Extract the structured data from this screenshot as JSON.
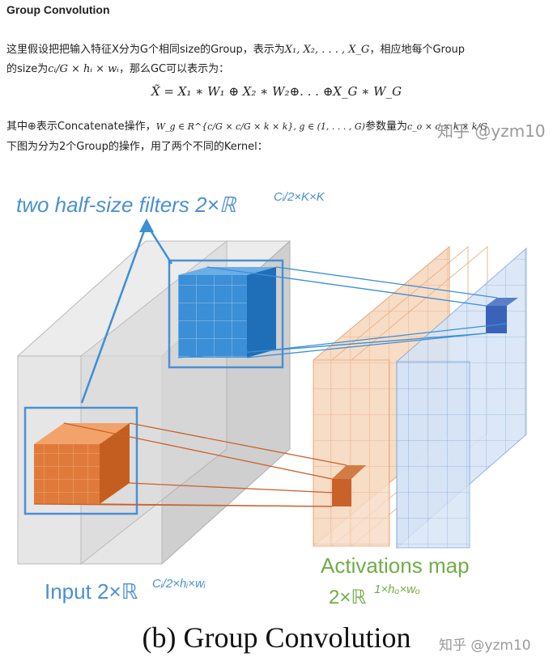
{
  "heading": "Group Convolution",
  "para1_line1_a": "这里假设把把输入特征X分为G个相同size的Group，表示为",
  "para1_line1_math": "X₁, X₂, . . . , X_G",
  "para1_line1_b": "，相应地每个Group",
  "para1_line2_a": "的size为",
  "para1_line2_math": "cᵢ/G × hᵢ × wᵢ",
  "para1_line2_b": "，那么GC可以表示为：",
  "equation": "X̃ = X₁ ∗ W₁ ⊕ X₂ ∗ W₂⊕. . . ⊕X_G ∗ W_G",
  "para2_line1_a": "其中⊕表示Concatenate操作，",
  "para2_line1_math": "W_g ∈ R^{c/G × c/G × k × k}, g ∈ (1, . . . , G)",
  "para2_line1_b": "参数量为",
  "para2_line1_c": "c_o × c × k × k/G",
  "para2_line2": "下图为分为2个Group的操作，用了两个不同的Kernel：",
  "watermark_top": "知乎 @yzm10",
  "figure": {
    "filters_label": "two half-size filters 2×ℝ",
    "filters_sup": "Cᵢ/2×K×K",
    "input_label": "Input 2×ℝ",
    "input_sup": "Cᵢ/2×hᵢ×wᵢ",
    "activation_label": "Activations map",
    "activation_formula": "2×ℝ",
    "activation_sup": "1×hₒ×wₒ",
    "colors": {
      "blue": "#3a8fd6",
      "orange": "#e07a3a",
      "label_blue": "#4a90d2",
      "label_green": "#70ad47"
    }
  },
  "caption": "(b) Group Convolution",
  "watermark_bottom": "知乎 @yzm10"
}
